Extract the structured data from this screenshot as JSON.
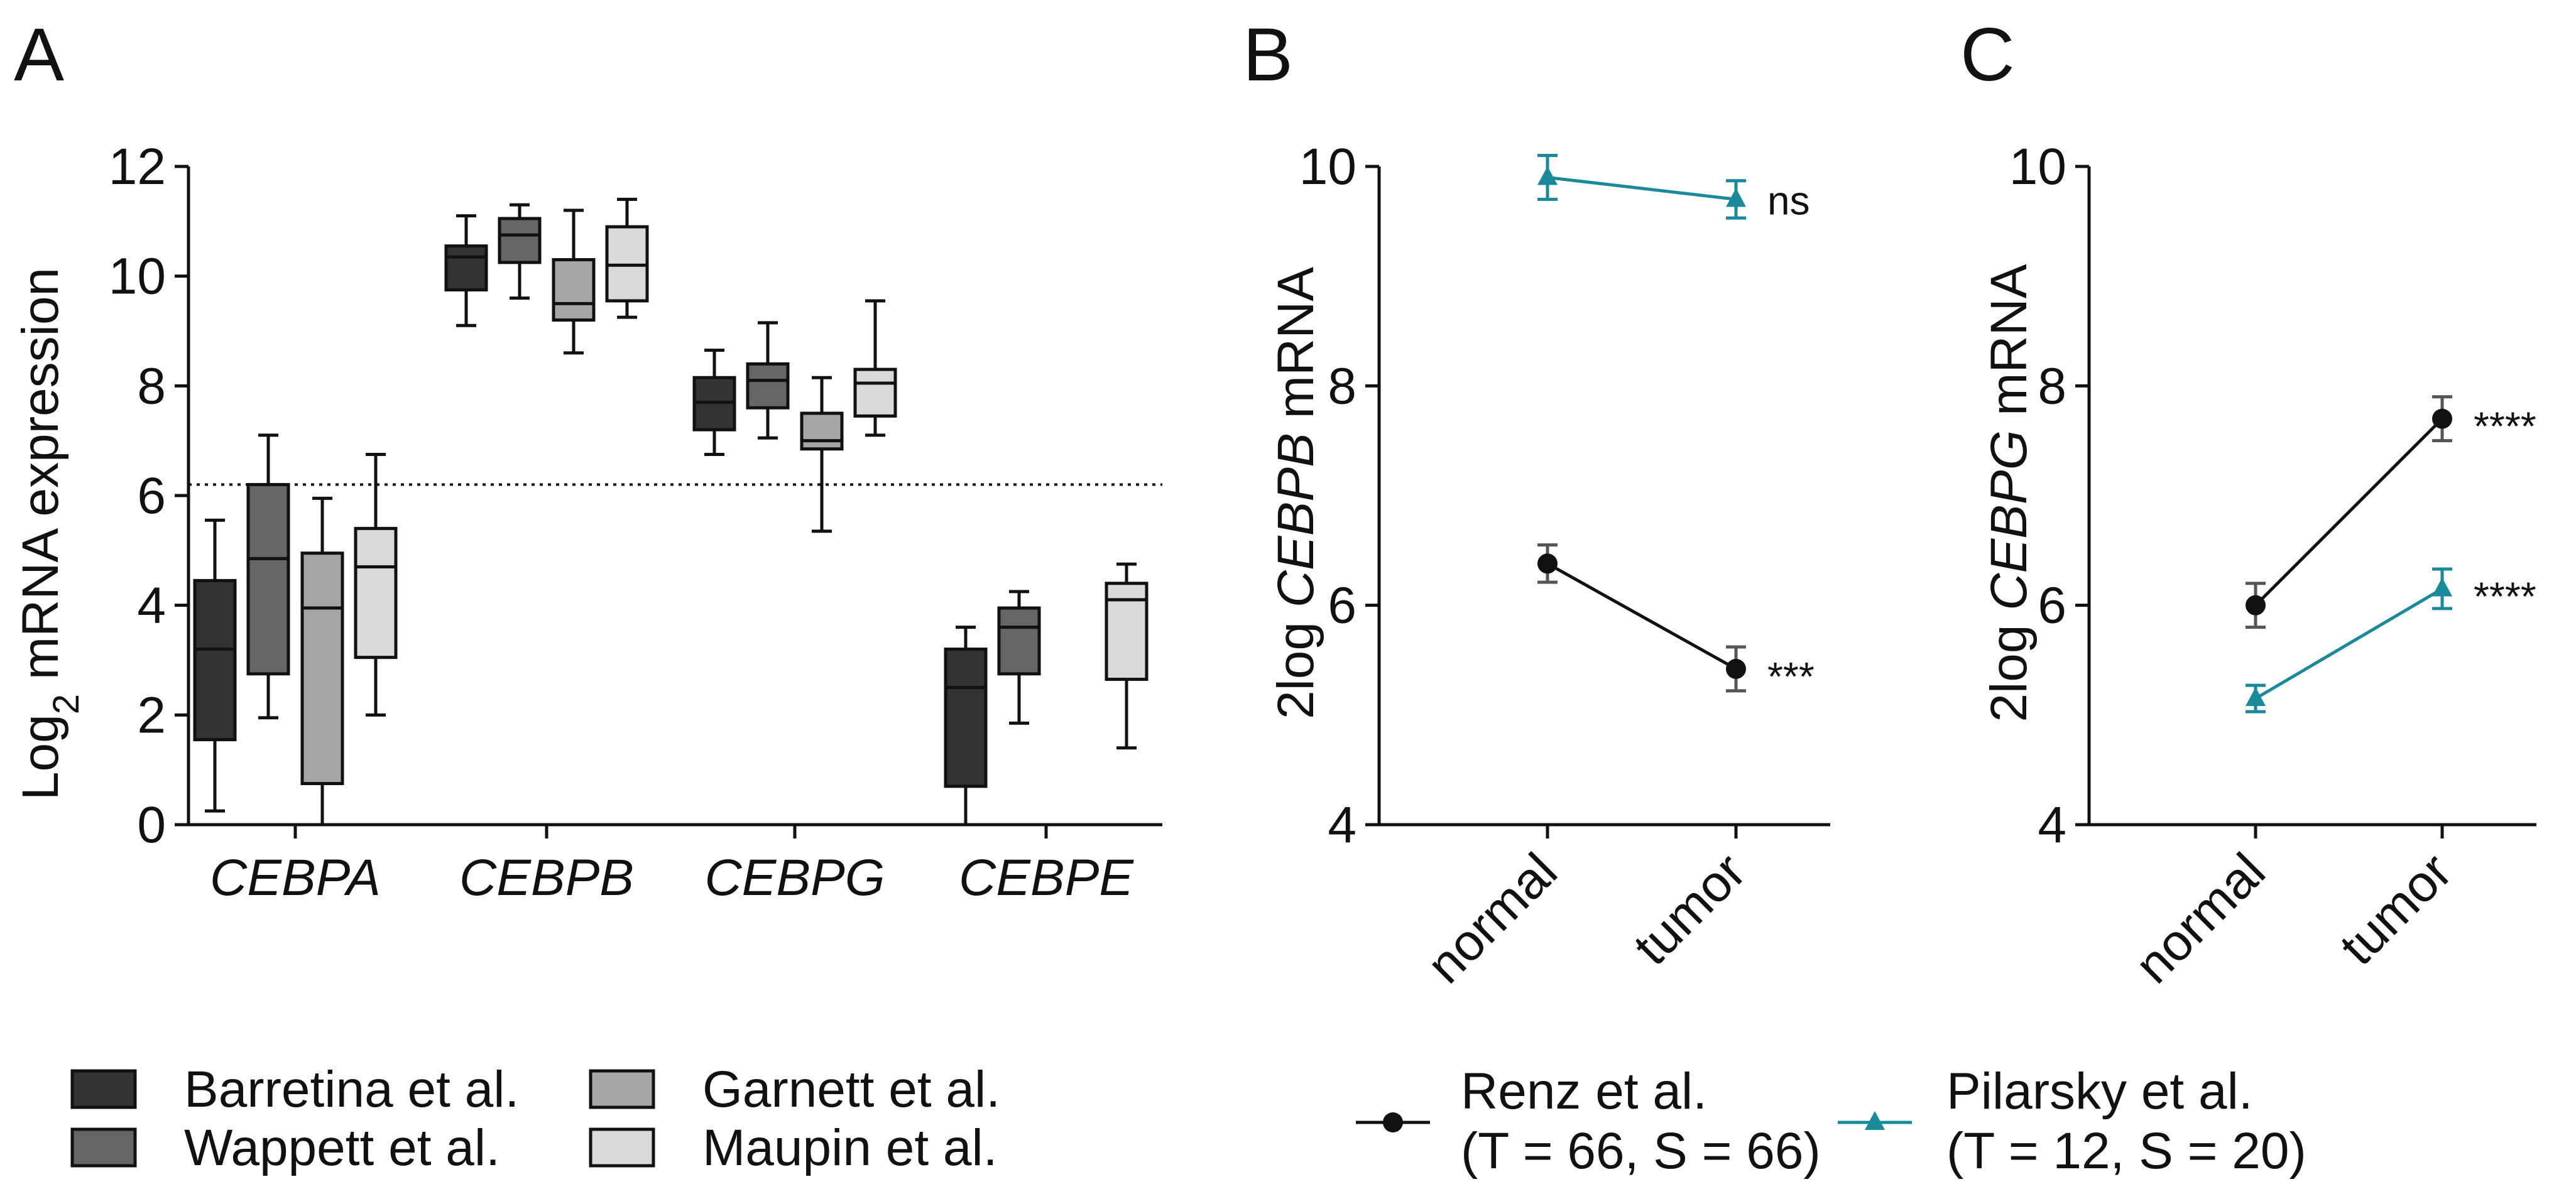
{
  "panels": {
    "A": {
      "letter": "A",
      "ylabel_main": "Log",
      "ylabel_sub": "2",
      "ylabel_rest": " mRNA expression",
      "ylim": [
        0,
        12
      ],
      "yticks": [
        "0",
        "2",
        "4",
        "6",
        "8",
        "10",
        "12"
      ],
      "threshold": 6.2,
      "categories": [
        "CEBPA",
        "CEBPB",
        "CEBPG",
        "CEBPE"
      ]
    },
    "B": {
      "letter": "B",
      "ylabel_prefix": "2log ",
      "ylabel_gene": "CEBPB",
      "ylabel_suffix": " mRNA",
      "ylim": [
        4,
        10
      ],
      "yticks": [
        "4",
        "6",
        "8",
        "10"
      ],
      "x": [
        "normal",
        "tumor"
      ]
    },
    "C": {
      "letter": "C",
      "ylabel_prefix": "2log ",
      "ylabel_gene": "CEBPG",
      "ylabel_suffix": " mRNA",
      "ylim": [
        4,
        10
      ],
      "yticks": [
        "4",
        "6",
        "8",
        "10"
      ],
      "x": [
        "normal",
        "tumor"
      ]
    }
  },
  "colors": {
    "barretina": "#333333",
    "wappett": "#666666",
    "garnett": "#a6a6a6",
    "maupin": "#d9d9d9",
    "renz": "#111111",
    "pilarsky": "#1a8a9b"
  },
  "legend_A": [
    {
      "label": "Barretina et al.",
      "color": "#333333"
    },
    {
      "label": "Wappett et al.",
      "color": "#666666"
    },
    {
      "label": "Garnett et al.",
      "color": "#a6a6a6"
    },
    {
      "label": "Maupin et al.",
      "color": "#d9d9d9"
    }
  ],
  "legend_BC": [
    {
      "label": "Renz et al.",
      "sub": "(T = 66, S = 66)",
      "marker": "circle",
      "color": "#111111"
    },
    {
      "label": "Pilarsky et al.",
      "sub": "(T = 12, S = 20)",
      "marker": "triangle",
      "color": "#1a8a9b"
    }
  ],
  "chart_data": [
    {
      "type": "box",
      "panel": "A",
      "ylabel": "Log2 mRNA expression",
      "ylim": [
        0,
        12
      ],
      "threshold_line": 6.2,
      "categories": [
        "CEBPA",
        "CEBPB",
        "CEBPG",
        "CEBPE"
      ],
      "series": [
        {
          "name": "Barretina et al.",
          "boxes": [
            {
              "min": 0.25,
              "q1": 1.55,
              "median": 3.2,
              "q3": 4.45,
              "max": 5.55
            },
            {
              "min": 9.1,
              "q1": 9.75,
              "median": 10.35,
              "q3": 10.55,
              "max": 11.1
            },
            {
              "min": 6.75,
              "q1": 7.2,
              "median": 7.7,
              "q3": 8.15,
              "max": 8.65
            },
            {
              "min": 0.0,
              "q1": 0.7,
              "median": 2.5,
              "q3": 3.2,
              "max": 3.6
            }
          ]
        },
        {
          "name": "Wappett et al.",
          "boxes": [
            {
              "min": 1.95,
              "q1": 2.75,
              "median": 4.85,
              "q3": 6.2,
              "max": 7.1
            },
            {
              "min": 9.6,
              "q1": 10.25,
              "median": 10.75,
              "q3": 11.05,
              "max": 11.3
            },
            {
              "min": 7.05,
              "q1": 7.6,
              "median": 8.1,
              "q3": 8.4,
              "max": 9.15
            },
            {
              "min": 1.85,
              "q1": 2.75,
              "median": 3.6,
              "q3": 3.95,
              "max": 4.25
            }
          ]
        },
        {
          "name": "Garnett et al.",
          "boxes": [
            {
              "min": 0.0,
              "q1": 0.75,
              "median": 3.95,
              "q3": 4.95,
              "max": 5.95
            },
            {
              "min": 8.6,
              "q1": 9.2,
              "median": 9.5,
              "q3": 10.3,
              "max": 11.2
            },
            {
              "min": 5.35,
              "q1": 6.85,
              "median": 7.0,
              "q3": 7.5,
              "max": 8.15
            },
            null
          ]
        },
        {
          "name": "Maupin et al.",
          "boxes": [
            {
              "min": 2.0,
              "q1": 3.05,
              "median": 4.7,
              "q3": 5.4,
              "max": 6.75
            },
            {
              "min": 9.25,
              "q1": 9.55,
              "median": 10.2,
              "q3": 10.9,
              "max": 11.4
            },
            {
              "min": 7.1,
              "q1": 7.45,
              "median": 8.05,
              "q3": 8.3,
              "max": 9.55
            },
            {
              "min": 1.4,
              "q1": 2.65,
              "median": 4.1,
              "q3": 4.4,
              "max": 4.75
            }
          ]
        }
      ]
    },
    {
      "type": "line",
      "panel": "B",
      "ylabel": "2log CEBPB mRNA",
      "ylim": [
        4,
        10
      ],
      "x": [
        "normal",
        "tumor"
      ],
      "series": [
        {
          "name": "Renz et al.",
          "values": [
            6.38,
            5.42
          ],
          "err": [
            0.17,
            0.2
          ],
          "marker": "circle",
          "color": "#111111",
          "annotation": "***"
        },
        {
          "name": "Pilarsky et al.",
          "values": [
            9.9,
            9.7
          ],
          "err": [
            0.2,
            0.17
          ],
          "marker": "triangle",
          "color": "#1a8a9b",
          "annotation": "ns"
        }
      ]
    },
    {
      "type": "line",
      "panel": "C",
      "ylabel": "2log CEBPG mRNA",
      "ylim": [
        4,
        10
      ],
      "x": [
        "normal",
        "tumor"
      ],
      "series": [
        {
          "name": "Renz et al.",
          "values": [
            6.0,
            7.7
          ],
          "err": [
            0.2,
            0.2
          ],
          "marker": "circle",
          "color": "#111111",
          "annotation": "****"
        },
        {
          "name": "Pilarsky et al.",
          "values": [
            5.15,
            6.15
          ],
          "err": [
            0.12,
            0.18
          ],
          "marker": "triangle",
          "color": "#1a8a9b",
          "annotation": "****"
        }
      ]
    }
  ]
}
